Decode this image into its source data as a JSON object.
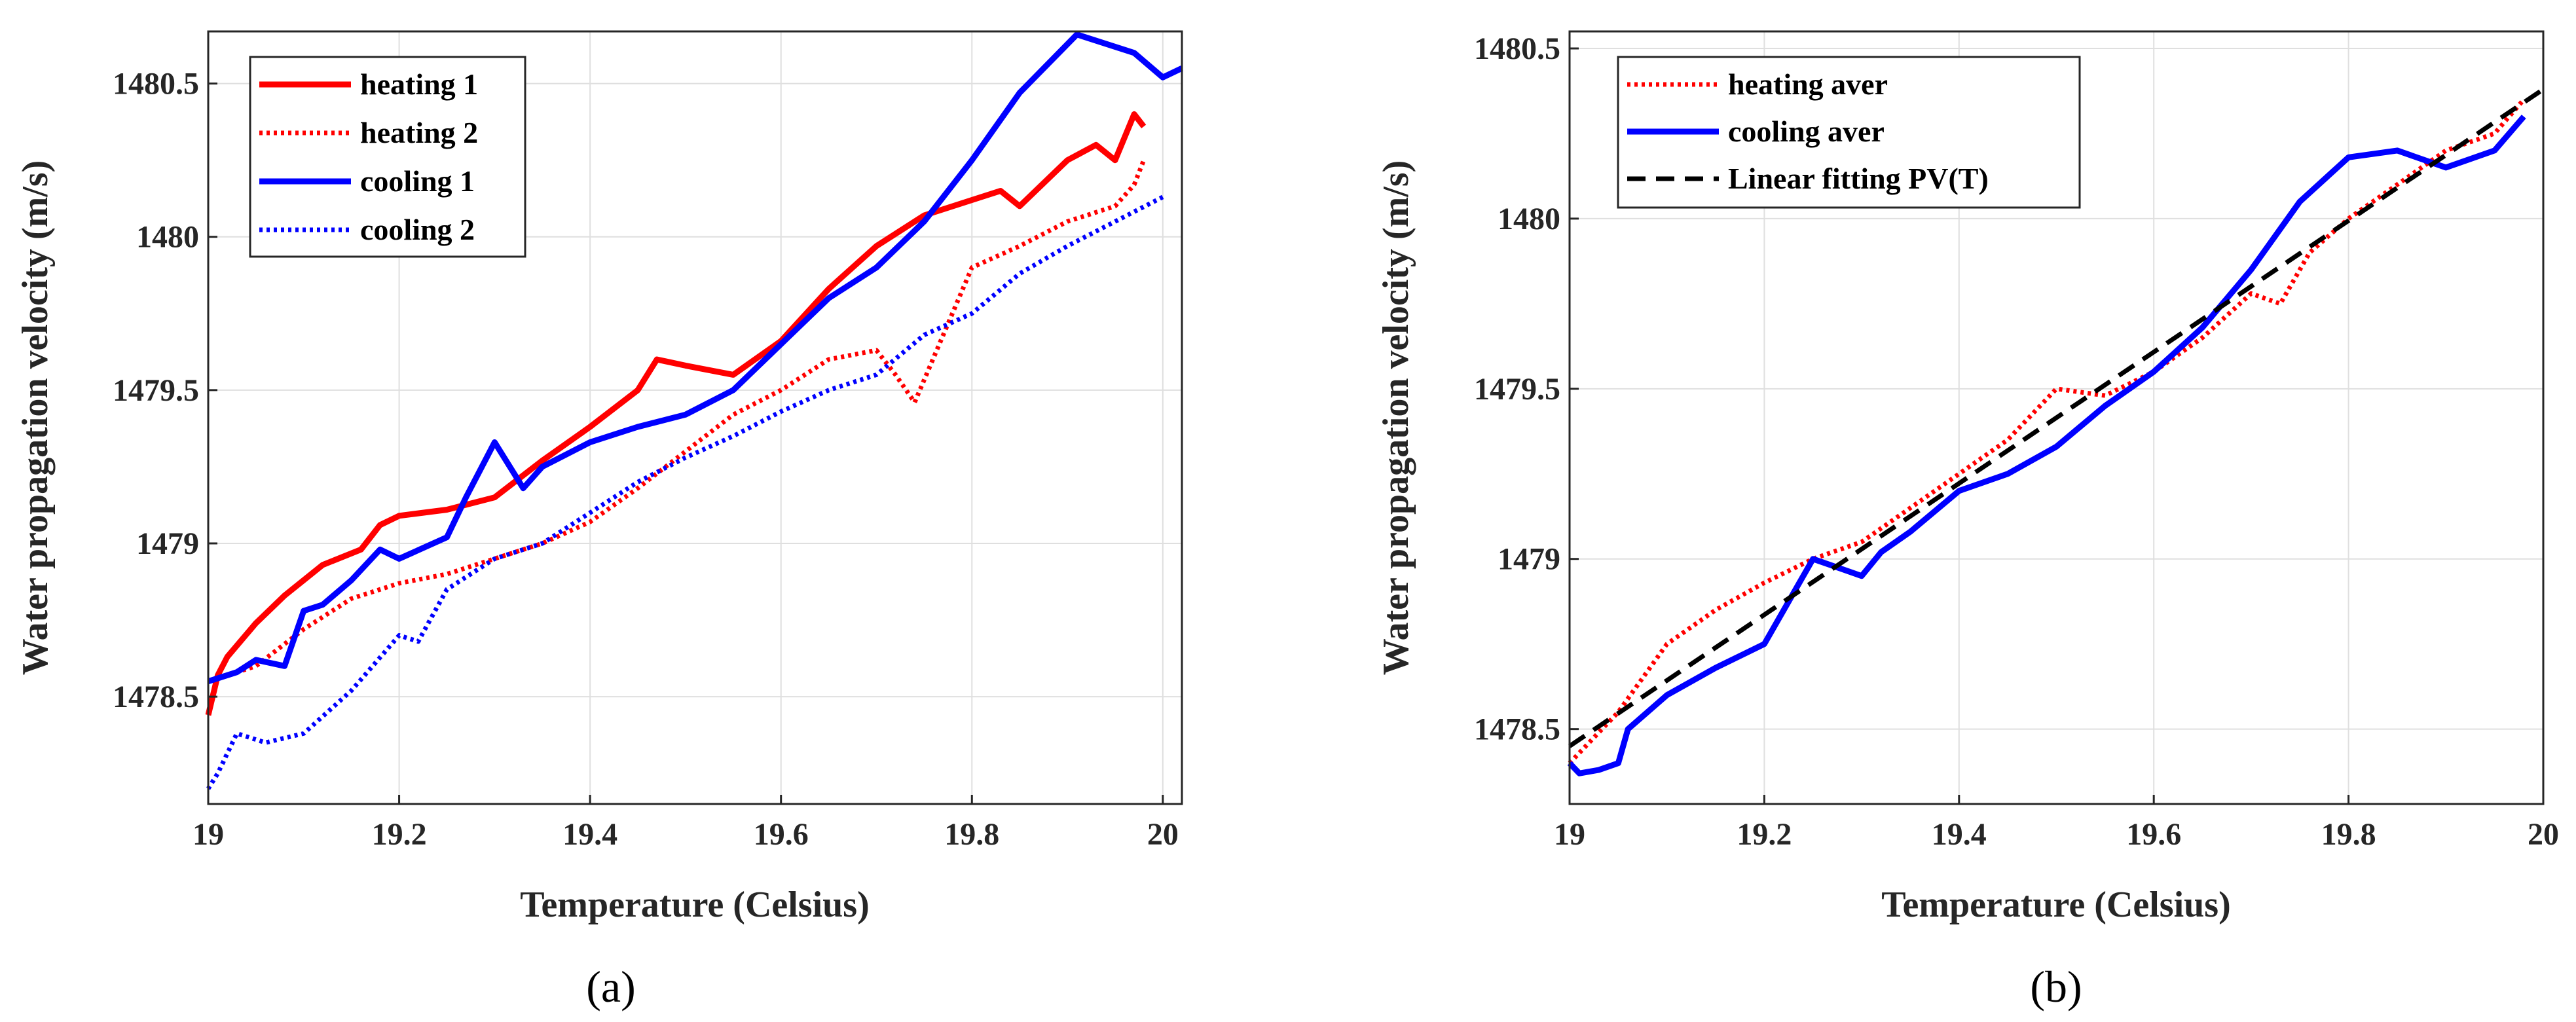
{
  "chart_data": [
    {
      "type": "line",
      "panel_label": "(a)",
      "xlabel": "Temperature (Celsius)",
      "ylabel": "Water propagation velocity (m/s)",
      "xlim": [
        19,
        20.02
      ],
      "ylim": [
        1478.15,
        1480.67
      ],
      "xticks": [
        "19",
        "19.2",
        "19.4",
        "19.6",
        "19.8",
        "20"
      ],
      "yticks": [
        "1478.5",
        "1479",
        "1479.5",
        "1480",
        "1480.5"
      ],
      "grid": true,
      "legend_position": "top-left",
      "series": [
        {
          "name": "heating 1",
          "color": "#ff0000",
          "style": "solid",
          "x": [
            19.0,
            19.01,
            19.02,
            19.05,
            19.08,
            19.12,
            19.16,
            19.18,
            19.2,
            19.25,
            19.3,
            19.35,
            19.4,
            19.45,
            19.47,
            19.5,
            19.55,
            19.6,
            19.65,
            19.7,
            19.75,
            19.8,
            19.83,
            19.85,
            19.9,
            19.93,
            19.95,
            19.97,
            19.98
          ],
          "y": [
            1478.44,
            1478.57,
            1478.63,
            1478.74,
            1478.83,
            1478.93,
            1478.98,
            1479.06,
            1479.09,
            1479.11,
            1479.15,
            1479.27,
            1479.38,
            1479.5,
            1479.6,
            1479.58,
            1479.55,
            1479.66,
            1479.83,
            1479.97,
            1480.07,
            1480.12,
            1480.15,
            1480.1,
            1480.25,
            1480.3,
            1480.25,
            1480.4,
            1480.36
          ]
        },
        {
          "name": "heating 2",
          "color": "#ff0000",
          "style": "dotted",
          "x": [
            19.0,
            19.05,
            19.1,
            19.15,
            19.2,
            19.25,
            19.3,
            19.35,
            19.4,
            19.45,
            19.5,
            19.55,
            19.6,
            19.65,
            19.7,
            19.72,
            19.74,
            19.77,
            19.8,
            19.85,
            19.9,
            19.95,
            19.97,
            19.98
          ],
          "y": [
            1478.55,
            1478.6,
            1478.72,
            1478.82,
            1478.87,
            1478.9,
            1478.95,
            1479.0,
            1479.07,
            1479.18,
            1479.3,
            1479.42,
            1479.5,
            1479.6,
            1479.63,
            1479.55,
            1479.46,
            1479.68,
            1479.9,
            1479.97,
            1480.05,
            1480.1,
            1480.17,
            1480.25
          ]
        },
        {
          "name": "cooling 1",
          "color": "#0000ff",
          "style": "solid",
          "x": [
            20.02,
            20.0,
            19.97,
            19.91,
            19.85,
            19.8,
            19.75,
            19.7,
            19.65,
            19.6,
            19.55,
            19.5,
            19.45,
            19.4,
            19.35,
            19.33,
            19.3,
            19.27,
            19.25,
            19.2,
            19.18,
            19.15,
            19.12,
            19.1,
            19.08,
            19.05,
            19.03,
            19.0
          ],
          "y": [
            1480.55,
            1480.52,
            1480.6,
            1480.66,
            1480.47,
            1480.25,
            1480.05,
            1479.9,
            1479.8,
            1479.65,
            1479.5,
            1479.42,
            1479.38,
            1479.33,
            1479.25,
            1479.18,
            1479.33,
            1479.15,
            1479.02,
            1478.95,
            1478.98,
            1478.88,
            1478.8,
            1478.78,
            1478.6,
            1478.62,
            1478.58,
            1478.55
          ]
        },
        {
          "name": "cooling 2",
          "color": "#0000ff",
          "style": "dotted",
          "x": [
            20.0,
            19.95,
            19.9,
            19.85,
            19.8,
            19.75,
            19.7,
            19.65,
            19.6,
            19.55,
            19.5,
            19.45,
            19.4,
            19.35,
            19.3,
            19.25,
            19.22,
            19.2,
            19.15,
            19.1,
            19.06,
            19.03,
            19.01,
            19.0
          ],
          "y": [
            1480.13,
            1480.05,
            1479.97,
            1479.88,
            1479.75,
            1479.68,
            1479.55,
            1479.5,
            1479.43,
            1479.35,
            1479.28,
            1479.2,
            1479.1,
            1479.0,
            1478.95,
            1478.85,
            1478.68,
            1478.7,
            1478.52,
            1478.38,
            1478.35,
            1478.38,
            1478.25,
            1478.2
          ]
        }
      ]
    },
    {
      "type": "line",
      "panel_label": "(b)",
      "xlabel": "Temperature (Celsius)",
      "ylabel": "Water propagation velocity (m/s)",
      "xlim": [
        19,
        20
      ],
      "ylim": [
        1478.28,
        1480.55
      ],
      "xticks": [
        "19",
        "19.2",
        "19.4",
        "19.6",
        "19.8",
        "20"
      ],
      "yticks": [
        "1478.5",
        "1479",
        "1479.5",
        "1480",
        "1480.5"
      ],
      "grid": true,
      "legend_position": "top-left",
      "series": [
        {
          "name": "heating aver",
          "color": "#ff0000",
          "style": "dotted",
          "x": [
            19.0,
            19.05,
            19.1,
            19.15,
            19.2,
            19.25,
            19.3,
            19.35,
            19.4,
            19.45,
            19.5,
            19.55,
            19.6,
            19.65,
            19.7,
            19.73,
            19.76,
            19.8,
            19.85,
            19.9,
            19.95,
            19.98
          ],
          "y": [
            1478.4,
            1478.55,
            1478.75,
            1478.85,
            1478.93,
            1479.0,
            1479.05,
            1479.15,
            1479.25,
            1479.35,
            1479.5,
            1479.48,
            1479.55,
            1479.65,
            1479.78,
            1479.75,
            1479.9,
            1480.0,
            1480.1,
            1480.2,
            1480.25,
            1480.35
          ]
        },
        {
          "name": "cooling aver",
          "color": "#0000ff",
          "style": "solid",
          "x": [
            19.98,
            19.95,
            19.9,
            19.85,
            19.8,
            19.75,
            19.7,
            19.65,
            19.6,
            19.55,
            19.5,
            19.45,
            19.4,
            19.35,
            19.32,
            19.3,
            19.25,
            19.2,
            19.15,
            19.1,
            19.08,
            19.06,
            19.05,
            19.03,
            19.01,
            19.0
          ],
          "y": [
            1480.3,
            1480.2,
            1480.15,
            1480.2,
            1480.18,
            1480.05,
            1479.85,
            1479.68,
            1479.55,
            1479.45,
            1479.33,
            1479.25,
            1479.2,
            1479.08,
            1479.02,
            1478.95,
            1479.0,
            1478.75,
            1478.68,
            1478.6,
            1478.55,
            1478.5,
            1478.4,
            1478.38,
            1478.37,
            1478.4
          ]
        },
        {
          "name": "Linear fitting PV(T)",
          "color": "#000000",
          "style": "dashed",
          "x": [
            19.0,
            20.0
          ],
          "y": [
            1478.45,
            1480.38
          ]
        }
      ]
    }
  ]
}
